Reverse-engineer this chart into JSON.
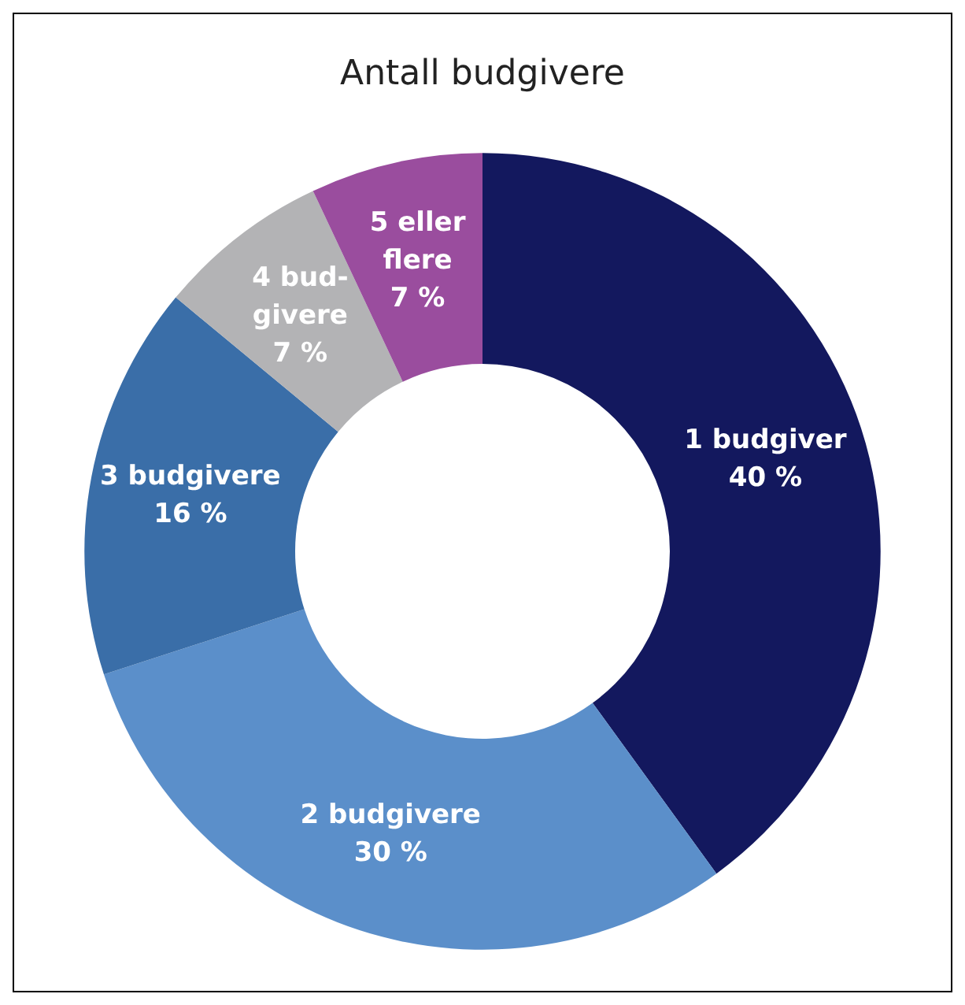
{
  "chart_data": {
    "type": "donut",
    "title": "Antall budgivere",
    "categories": [
      "1 budgiver",
      "2 budgivere",
      "3 budgivere",
      "4 bud-\ngivere",
      "5 eller\nflere"
    ],
    "values": [
      40,
      30,
      16,
      7,
      7
    ],
    "value_labels": [
      "40 %",
      "30 %",
      "16 %",
      "7 %",
      "7 %"
    ],
    "colors": [
      "#13185e",
      "#5b8fca",
      "#3a6ea8",
      "#b3b3b5",
      "#9a4d9e"
    ],
    "legend": false
  }
}
